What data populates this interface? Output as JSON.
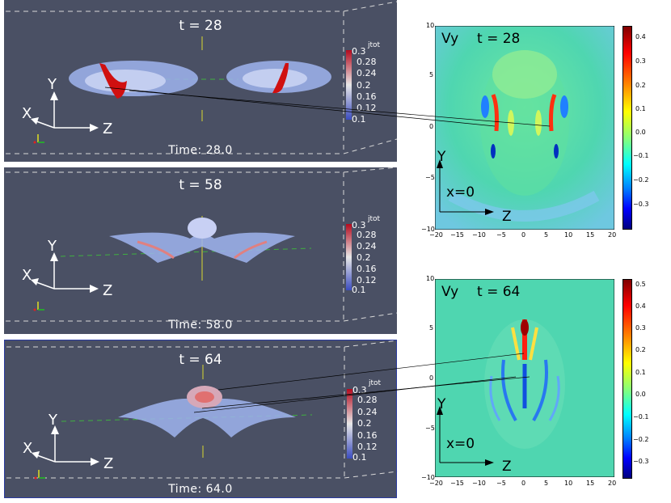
{
  "render_panels": [
    {
      "title": "t = 28",
      "footer": "Time: 28.0"
    },
    {
      "title": "t = 58",
      "footer": "Time: 58.0"
    },
    {
      "title": "t = 64",
      "footer": "Time: 64.0"
    }
  ],
  "axes_labels": {
    "y": "Y",
    "x": "X",
    "z": "Z"
  },
  "jtot_colorbar": {
    "title": "jtot",
    "ticks": [
      "0.3",
      "0.28",
      "0.24",
      "0.2",
      "0.16",
      "0.12",
      "0.1"
    ]
  },
  "heatmaps": [
    {
      "field": "Vy",
      "time_label": "t = 28",
      "slice_label": "x=0",
      "y_label": "Y",
      "z_label": "Z",
      "y_ticks": [
        "10",
        "5",
        "0",
        "−5",
        "−10"
      ],
      "x_ticks": [
        "−20",
        "−15",
        "−10",
        "−5",
        "0",
        "5",
        "10",
        "15",
        "20"
      ],
      "colorbar_ticks": [
        "0.4",
        "0.3",
        "0.2",
        "0.1",
        "0.0",
        "−0.1",
        "−0.2",
        "−0.3"
      ]
    },
    {
      "field": "Vy",
      "time_label": "t = 64",
      "slice_label": "x=0",
      "y_label": "Y",
      "z_label": "Z",
      "y_ticks": [
        "10",
        "5",
        "0",
        "−5",
        "−10"
      ],
      "x_ticks": [
        "−20",
        "−15",
        "−10",
        "−5",
        "0",
        "5",
        "10",
        "15",
        "20"
      ],
      "colorbar_ticks": [
        "0.5",
        "0.4",
        "0.3",
        "0.2",
        "0.1",
        "0.0",
        "−0.1",
        "−0.2",
        "−0.3"
      ]
    }
  ],
  "colors": {
    "panel_bg": "#4a5064",
    "heat_bg": "#4fd6b0",
    "accent_red": "#d01010",
    "blob_blue": "#9fb4ee"
  }
}
